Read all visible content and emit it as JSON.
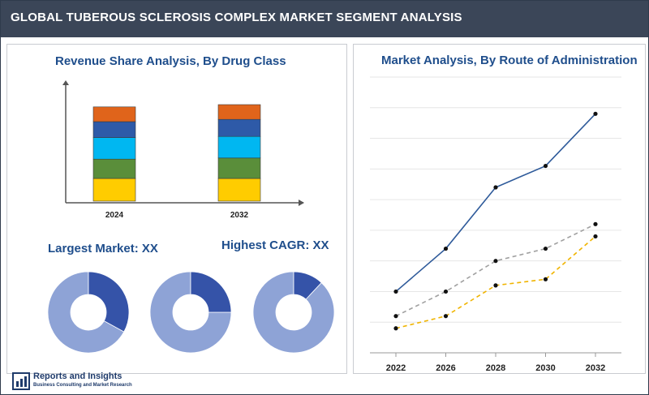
{
  "header": {
    "title": "GLOBAL TUBEROUS SCLEROSIS COMPLEX MARKET SEGMENT ANALYSIS"
  },
  "left": {
    "bar_title": "Revenue Share Analysis, By Drug Class",
    "largest_market": "Largest Market: XX",
    "highest_cagr": "Highest CAGR: XX"
  },
  "right": {
    "line_title": "Market Analysis, By Route of Administration"
  },
  "logo": {
    "name": "Reports and Insights",
    "tagline": "Business Consulting and Market Research"
  },
  "colors": {
    "header_bg": "#3b4658",
    "title_blue": "#1f4e8c",
    "seg_yellow": "#ffcc00",
    "seg_green": "#5a8e3a",
    "seg_cyan": "#00b7f1",
    "seg_blue": "#2e5aa8",
    "seg_orange": "#e0641b",
    "donut_light": "#8ea3d6",
    "donut_dark": "#3553a8",
    "line_blue": "#2e5a9a",
    "line_gray": "#a0a0a0",
    "line_yellow": "#f0b400"
  },
  "chart_data": [
    {
      "type": "bar",
      "stacked": true,
      "categories": [
        "2024",
        "2032"
      ],
      "series": [
        {
          "values": [
            20,
            20
          ],
          "color": "#ffcc00"
        },
        {
          "values": [
            17,
            18
          ],
          "color": "#5a8e3a"
        },
        {
          "values": [
            19,
            19
          ],
          "color": "#00b7f1"
        },
        {
          "values": [
            14,
            15
          ],
          "color": "#2e5aa8"
        },
        {
          "values": [
            13,
            13
          ],
          "color": "#e0641b"
        }
      ],
      "ylim": [
        0,
        100
      ]
    },
    {
      "type": "pie",
      "donut": true,
      "values": [
        67,
        33
      ],
      "colors": [
        "#8ea3d6",
        "#3553a8"
      ]
    },
    {
      "type": "pie",
      "donut": true,
      "values": [
        75,
        25
      ],
      "colors": [
        "#8ea3d6",
        "#3553a8"
      ]
    },
    {
      "type": "pie",
      "donut": true,
      "values": [
        88,
        12
      ],
      "colors": [
        "#8ea3d6",
        "#3553a8"
      ]
    },
    {
      "type": "line",
      "x": [
        "2022",
        "2026",
        "2028",
        "2030",
        "2032"
      ],
      "series": [
        {
          "values": [
            10,
            17,
            27,
            30.5,
            39
          ],
          "color": "#2e5a9a",
          "dash": false
        },
        {
          "values": [
            6,
            10,
            15,
            17,
            21
          ],
          "color": "#a0a0a0",
          "dash": true
        },
        {
          "values": [
            4,
            6,
            11,
            12,
            19
          ],
          "color": "#f0b400",
          "dash": true
        }
      ],
      "ylim": [
        0,
        45
      ],
      "grid": true
    }
  ]
}
